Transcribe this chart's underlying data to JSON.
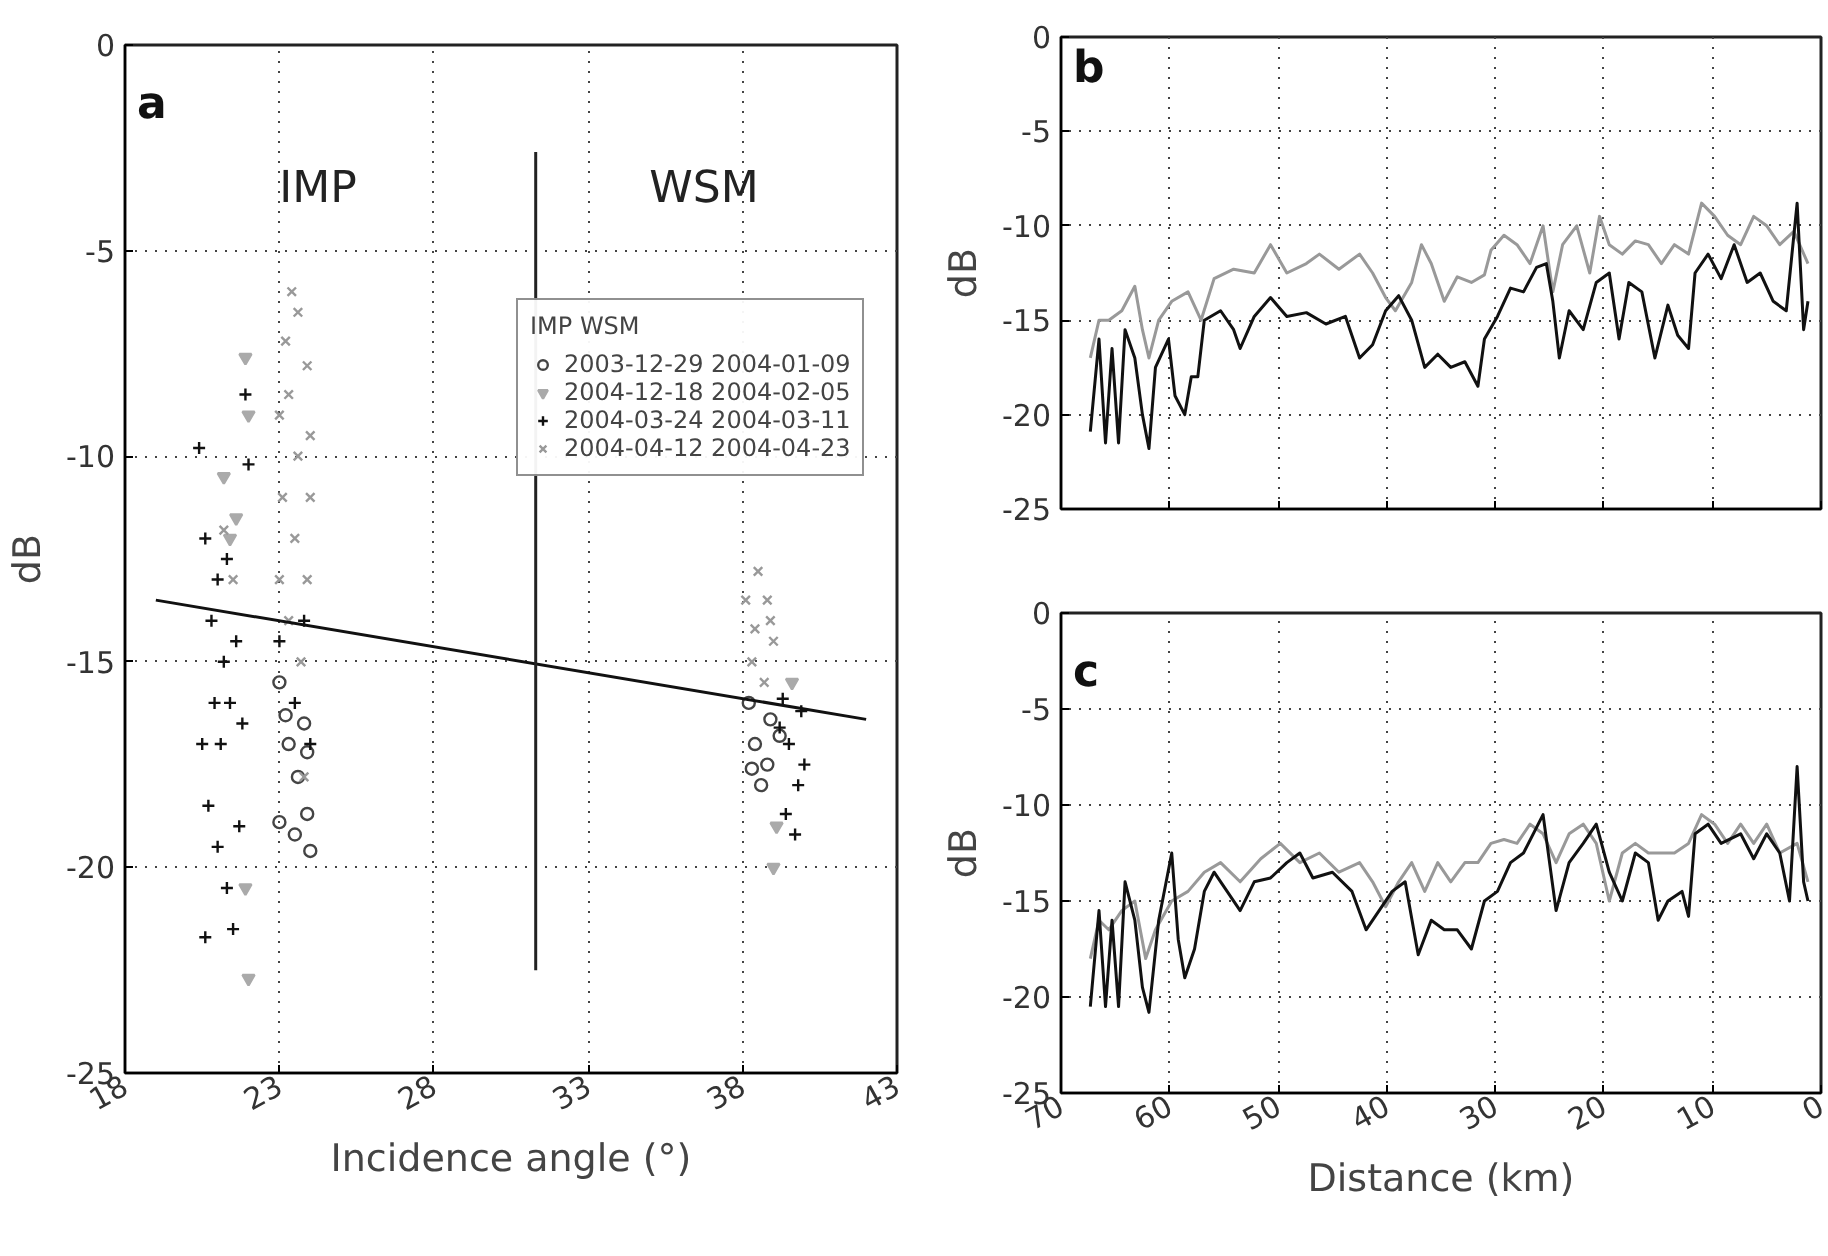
{
  "chart_data": [
    {
      "type": "scatter",
      "xlabel": "Incidence angle (°)",
      "ylabel": "dB",
      "xlim": [
        18,
        43
      ],
      "ylim": [
        -25,
        0
      ],
      "xticks": [
        18,
        23,
        28,
        33,
        38,
        43
      ],
      "yticks": [
        0,
        -5,
        -10,
        -15,
        -20,
        -25
      ],
      "grid": true,
      "legend": "top right",
      "legend_title": "IMP WSM",
      "annotations": [
        "a",
        "IMP",
        "WSM"
      ],
      "series": [
        {
          "name": "2003-12-29 2004-01-09",
          "color": "#444444",
          "marker": "circle",
          "x": [
            23.0,
            23.3,
            23.6,
            23.9,
            23.0,
            23.5,
            24.0,
            23.9,
            23.2,
            23.8,
            38.2,
            38.4,
            38.6,
            38.8,
            38.3,
            38.9,
            39.2
          ],
          "values": [
            -15.5,
            -17.0,
            -17.8,
            -17.2,
            -18.9,
            -19.2,
            -19.6,
            -18.7,
            -16.3,
            -16.5,
            -16.0,
            -17.0,
            -18.0,
            -17.5,
            -17.6,
            -16.4,
            -16.8
          ]
        },
        {
          "name": "2004-12-18 2004-02-05",
          "color": "#aaaaaa",
          "marker": "triangle",
          "x": [
            21.2,
            21.6,
            21.9,
            22.0,
            21.9,
            22.0,
            21.4,
            39.0,
            39.1,
            39.6
          ],
          "values": [
            -10.5,
            -11.5,
            -7.6,
            -9.0,
            -20.5,
            -22.7,
            -12.0,
            -20.0,
            -19.0,
            -15.5
          ]
        },
        {
          "name": "2004-03-24 2004-03-11",
          "color": "#111111",
          "marker": "cross",
          "x": [
            20.4,
            20.6,
            20.8,
            21.0,
            21.2,
            21.4,
            20.5,
            20.7,
            21.0,
            21.3,
            21.5,
            20.6,
            21.1,
            21.6,
            21.8,
            22.0,
            21.7,
            20.9,
            21.3,
            21.9,
            23.0,
            23.5,
            24.0,
            23.8,
            39.2,
            39.5,
            39.8,
            40.0,
            39.4,
            39.7,
            39.9,
            39.3
          ],
          "values": [
            -9.8,
            -12.0,
            -14.0,
            -13.0,
            -15.0,
            -16.0,
            -17.0,
            -18.5,
            -19.5,
            -20.5,
            -21.5,
            -21.7,
            -17.0,
            -14.5,
            -16.5,
            -10.2,
            -19.0,
            -16.0,
            -12.5,
            -8.5,
            -14.5,
            -16.0,
            -17.0,
            -14.0,
            -16.6,
            -17.0,
            -18.0,
            -17.5,
            -18.7,
            -19.2,
            -16.2,
            -15.9
          ]
        },
        {
          "name": "2004-04-12 2004-04-23",
          "color": "#999999",
          "marker": "x",
          "x": [
            23.0,
            23.2,
            23.4,
            23.6,
            23.9,
            24.0,
            23.1,
            23.5,
            23.9,
            23.3,
            23.7,
            23.0,
            24.0,
            23.6,
            23.3,
            23.8,
            21.2,
            21.5,
            38.1,
            38.5,
            38.8,
            39.0,
            38.3,
            38.7,
            38.9,
            38.4
          ],
          "values": [
            -9.0,
            -7.2,
            -6.0,
            -6.5,
            -7.8,
            -9.5,
            -11.0,
            -12.0,
            -13.0,
            -14.0,
            -15.0,
            -13.0,
            -11.0,
            -10.0,
            -8.5,
            -17.8,
            -11.8,
            -13.0,
            -13.5,
            -12.8,
            -13.5,
            -14.5,
            -15.0,
            -15.5,
            -14.0,
            -14.2
          ]
        },
        {
          "type": "line",
          "color": "#111111",
          "x": [
            19,
            42
          ],
          "values": [
            -13.5,
            -16.4
          ]
        },
        {
          "type": "line",
          "color": "#222222",
          "x": [
            31.3,
            31.3
          ],
          "values": [
            -2.6,
            -22.5
          ]
        }
      ]
    },
    {
      "type": "line",
      "ylabel": "dB",
      "xlim": [
        70,
        0
      ],
      "ylim": [
        -25,
        0
      ],
      "xticks": [
        70,
        60,
        50,
        40,
        30,
        20,
        10,
        0
      ],
      "yticks": [
        0,
        -5,
        -10,
        -15,
        -20,
        -25
      ],
      "grid": true,
      "tick_labels": "y",
      "annotations": [
        "b"
      ],
      "series": [
        {
          "color": "#999999",
          "x": [
            67.3,
            66.5,
            65.6,
            64.4,
            63.2,
            62.5,
            61.9,
            61.0,
            59.8,
            58.3,
            57.1,
            55.9,
            54.1,
            52.2,
            50.7,
            49.2,
            47.4,
            46.2,
            44.4,
            42.5,
            41.3,
            40.1,
            39.2,
            37.7,
            36.8,
            35.9,
            34.7,
            33.5,
            32.2,
            31.0,
            30.4,
            29.2,
            28.0,
            26.8,
            25.6,
            24.7,
            23.8,
            22.5,
            21.3,
            20.4,
            19.5,
            18.3,
            17.1,
            15.9,
            14.7,
            13.5,
            12.2,
            11.0,
            9.8,
            8.6,
            7.4,
            6.2,
            5.0,
            3.8,
            2.5,
            1.2
          ],
          "values": [
            -17,
            -15,
            -15,
            -14.5,
            -13.2,
            -15.5,
            -17,
            -15,
            -14,
            -13.5,
            -15,
            -12.8,
            -12.3,
            -12.5,
            -11,
            -12.5,
            -12,
            -11.5,
            -12.3,
            -11.5,
            -12.5,
            -13.8,
            -14.5,
            -13,
            -11,
            -12,
            -14,
            -12.7,
            -13,
            -12.6,
            -11.3,
            -10.5,
            -11,
            -12,
            -10,
            -13.5,
            -11,
            -10,
            -12.5,
            -9.5,
            -11,
            -11.5,
            -10.8,
            -11,
            -12,
            -11,
            -11.5,
            -8.8,
            -9.5,
            -10.5,
            -11,
            -9.5,
            -10,
            -11,
            -10.3,
            -12
          ]
        },
        {
          "color": "#111111",
          "x": [
            67.3,
            66.5,
            65.9,
            65.3,
            64.7,
            64.1,
            63.2,
            62.5,
            61.9,
            61.3,
            60.1,
            59.5,
            58.6,
            58.0,
            57.4,
            56.8,
            55.3,
            54.1,
            53.5,
            52.2,
            50.7,
            49.2,
            47.4,
            45.6,
            43.8,
            42.5,
            41.3,
            40.1,
            38.9,
            37.7,
            36.5,
            35.3,
            34.1,
            32.8,
            31.6,
            31.0,
            29.8,
            28.6,
            27.4,
            26.2,
            25.3,
            24.7,
            24.1,
            23.2,
            21.9,
            20.7,
            19.5,
            18.6,
            17.7,
            16.5,
            15.3,
            14.1,
            13.2,
            12.2,
            11.6,
            10.4,
            9.2,
            8.0,
            6.8,
            5.6,
            4.4,
            3.2,
            2.2,
            1.6,
            1.2
          ],
          "values": [
            -20.9,
            -16,
            -21.5,
            -16.5,
            -21.5,
            -15.5,
            -17,
            -20,
            -21.8,
            -17.5,
            -16,
            -19,
            -20,
            -18,
            -18,
            -15,
            -14.5,
            -15.5,
            -16.5,
            -14.8,
            -13.8,
            -14.8,
            -14.6,
            -15.2,
            -14.8,
            -17,
            -16.3,
            -14.5,
            -13.7,
            -15,
            -17.5,
            -16.8,
            -17.5,
            -17.2,
            -18.5,
            -16,
            -14.8,
            -13.3,
            -13.5,
            -12.2,
            -12,
            -14,
            -17,
            -14.5,
            -15.5,
            -13,
            -12.5,
            -16,
            -13,
            -13.5,
            -17,
            -14.2,
            -15.8,
            -16.5,
            -12.5,
            -11.5,
            -12.8,
            -11,
            -13,
            -12.5,
            -14,
            -14.5,
            -8.8,
            -15.5,
            -14
          ]
        }
      ]
    },
    {
      "type": "line",
      "xlabel": "Distance (km)",
      "ylabel": "dB",
      "xlim": [
        70,
        0
      ],
      "ylim": [
        -25,
        0
      ],
      "xticks": [
        70,
        60,
        50,
        40,
        30,
        20,
        10,
        0
      ],
      "yticks": [
        0,
        -5,
        -10,
        -15,
        -20,
        -25
      ],
      "grid": true,
      "annotations": [
        "c"
      ],
      "series": [
        {
          "color": "#999999",
          "x": [
            67.3,
            66.5,
            65.6,
            64.4,
            63.2,
            62.2,
            61.3,
            59.8,
            58.3,
            56.8,
            55.3,
            53.5,
            51.6,
            49.8,
            48.0,
            46.2,
            44.4,
            42.5,
            41.3,
            40.1,
            38.9,
            37.7,
            36.5,
            35.3,
            34.1,
            32.8,
            31.6,
            30.4,
            29.2,
            28.0,
            26.8,
            25.6,
            24.4,
            23.2,
            21.9,
            20.7,
            19.5,
            18.3,
            17.1,
            15.9,
            14.7,
            13.5,
            12.2,
            11.0,
            9.8,
            8.6,
            7.4,
            6.2,
            5.0,
            3.8,
            2.2,
            1.2
          ],
          "values": [
            -18,
            -16,
            -16.5,
            -15.5,
            -15,
            -18,
            -16.5,
            -15,
            -14.5,
            -13.5,
            -13,
            -14,
            -12.8,
            -12,
            -13,
            -12.5,
            -13.5,
            -13,
            -14,
            -15.3,
            -14,
            -13,
            -14.5,
            -13,
            -14,
            -13,
            -13,
            -12,
            -11.8,
            -12,
            -11,
            -11.5,
            -13,
            -11.5,
            -11,
            -12,
            -15,
            -12.5,
            -12,
            -12.5,
            -12.5,
            -12.5,
            -12,
            -10.5,
            -11,
            -12,
            -11,
            -12,
            -11,
            -12.5,
            -12,
            -14
          ]
        },
        {
          "color": "#111111",
          "x": [
            67.3,
            66.5,
            65.9,
            65.3,
            64.7,
            64.1,
            63.2,
            62.5,
            61.9,
            61.0,
            59.8,
            59.2,
            58.6,
            57.7,
            56.8,
            55.9,
            54.7,
            53.5,
            52.2,
            50.7,
            49.2,
            48.0,
            46.8,
            45.0,
            43.2,
            41.9,
            40.7,
            39.5,
            38.3,
            37.1,
            35.9,
            34.7,
            33.5,
            32.2,
            31.0,
            29.8,
            28.6,
            27.4,
            25.6,
            24.4,
            23.2,
            21.9,
            20.7,
            19.5,
            18.3,
            17.1,
            15.9,
            15.0,
            14.1,
            12.8,
            12.2,
            11.6,
            10.4,
            9.2,
            7.4,
            6.2,
            5.0,
            3.8,
            2.9,
            2.2,
            1.6,
            1.2
          ],
          "values": [
            -20.5,
            -15.5,
            -20.5,
            -16,
            -20.5,
            -14,
            -16,
            -19.5,
            -20.8,
            -16,
            -12.5,
            -17,
            -19,
            -17.5,
            -14.5,
            -13.5,
            -14.5,
            -15.5,
            -14,
            -13.8,
            -13,
            -12.5,
            -13.8,
            -13.5,
            -14.5,
            -16.5,
            -15.5,
            -14.5,
            -14,
            -17.8,
            -16,
            -16.5,
            -16.5,
            -17.5,
            -15,
            -14.5,
            -13,
            -12.5,
            -10.5,
            -15.5,
            -13,
            -12,
            -11,
            -13.5,
            -15,
            -12.5,
            -13,
            -16,
            -15,
            -14.5,
            -15.8,
            -11.5,
            -11,
            -12,
            -11.5,
            -12.8,
            -11.5,
            -12.5,
            -15,
            -8,
            -14,
            -15
          ]
        }
      ]
    }
  ]
}
